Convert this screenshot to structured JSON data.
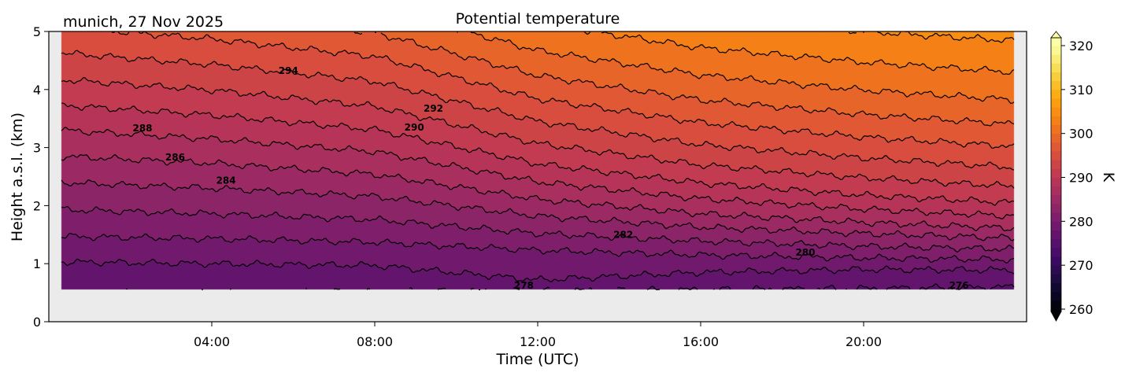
{
  "chart_data": {
    "type": "contour",
    "title": "Potential temperature",
    "annotation": "munich, 27 Nov 2025",
    "xlabel": "Time (UTC)",
    "ylabel": "Height a.s.l. (km)",
    "xlim": [
      0,
      24
    ],
    "ylim": [
      0,
      5
    ],
    "xticks": [
      4,
      8,
      12,
      16,
      20
    ],
    "xtick_labels": [
      "04:00",
      "08:00",
      "12:00",
      "16:00",
      "20:00"
    ],
    "yticks": [
      0,
      1,
      2,
      3,
      4,
      5
    ],
    "ytick_labels": [
      "0",
      "1",
      "2",
      "3",
      "4",
      "5"
    ],
    "colorbar": {
      "label": "K",
      "colormap": "inferno",
      "vmin": 260,
      "vmax": 320,
      "level_step": 2,
      "extend": "both",
      "ticks": [
        260,
        270,
        280,
        290,
        300,
        310,
        320
      ],
      "tick_labels": [
        "260",
        "270",
        "280",
        "290",
        "300",
        "310",
        "320"
      ]
    },
    "data_extent": {
      "time_hours": [
        0.3,
        23.7
      ],
      "height_km": [
        0.55,
        5
      ]
    },
    "contour_times": [
      0.3,
      4,
      8,
      12,
      16,
      20,
      23.7
    ],
    "contours": [
      {
        "level": 276,
        "heights": [
          0.5,
          0.5,
          0.52,
          0.53,
          0.55,
          0.57,
          0.6
        ]
      },
      {
        "level": 278,
        "heights": [
          1.03,
          1.0,
          0.97,
          0.72,
          0.85,
          0.9,
          0.89
        ]
      },
      {
        "level": 280,
        "heights": [
          1.47,
          1.43,
          1.37,
          1.23,
          1.15,
          1.1,
          1.07
        ]
      },
      {
        "level": 282,
        "heights": [
          1.93,
          1.86,
          1.76,
          1.52,
          1.39,
          1.3,
          1.25
        ]
      },
      {
        "level": 284,
        "heights": [
          2.4,
          2.3,
          2.16,
          1.82,
          1.63,
          1.52,
          1.44
        ]
      },
      {
        "level": 286,
        "heights": [
          2.85,
          2.73,
          2.54,
          2.11,
          1.86,
          1.71,
          1.61
        ]
      },
      {
        "level": 288,
        "heights": [
          3.3,
          3.15,
          2.93,
          2.41,
          2.12,
          1.94,
          1.82
        ]
      },
      {
        "level": 290,
        "heights": [
          3.73,
          3.56,
          3.31,
          2.72,
          2.39,
          2.18,
          2.05
        ]
      },
      {
        "level": 292,
        "heights": [
          4.17,
          3.99,
          3.71,
          3.07,
          2.7,
          2.48,
          2.33
        ]
      },
      {
        "level": 294,
        "heights": [
          4.63,
          4.43,
          4.14,
          3.45,
          3.05,
          2.82,
          2.66
        ]
      },
      {
        "level": 296,
        "heights": [
          5.08,
          4.87,
          4.57,
          3.84,
          3.43,
          3.18,
          3.02
        ]
      },
      {
        "level": 298,
        "heights": [
          5.5,
          5.29,
          4.98,
          4.24,
          3.82,
          3.57,
          3.4
        ]
      },
      {
        "level": 300,
        "heights": [
          5.95,
          5.74,
          5.42,
          4.67,
          4.25,
          3.99,
          3.82
        ]
      },
      {
        "level": 302,
        "heights": [
          6.4,
          6.19,
          5.88,
          5.14,
          4.72,
          4.47,
          4.3
        ]
      },
      {
        "level": 304,
        "heights": [
          6.85,
          6.65,
          6.35,
          5.65,
          5.25,
          5.0,
          4.84
        ]
      }
    ],
    "contour_labels": [
      {
        "text": "288",
        "time": 2.3,
        "height": 3.33
      },
      {
        "text": "286",
        "time": 3.1,
        "height": 2.83
      },
      {
        "text": "284",
        "time": 4.35,
        "height": 2.43
      },
      {
        "text": "294",
        "time": 5.88,
        "height": 4.32
      },
      {
        "text": "290",
        "time": 8.97,
        "height": 3.35
      },
      {
        "text": "292",
        "time": 9.44,
        "height": 3.67
      },
      {
        "text": "278",
        "time": 11.66,
        "height": 0.62
      },
      {
        "text": "282",
        "time": 14.1,
        "height": 1.5
      },
      {
        "text": "280",
        "time": 18.57,
        "height": 1.19
      },
      {
        "text": "276",
        "time": 22.34,
        "height": 0.62
      }
    ]
  }
}
